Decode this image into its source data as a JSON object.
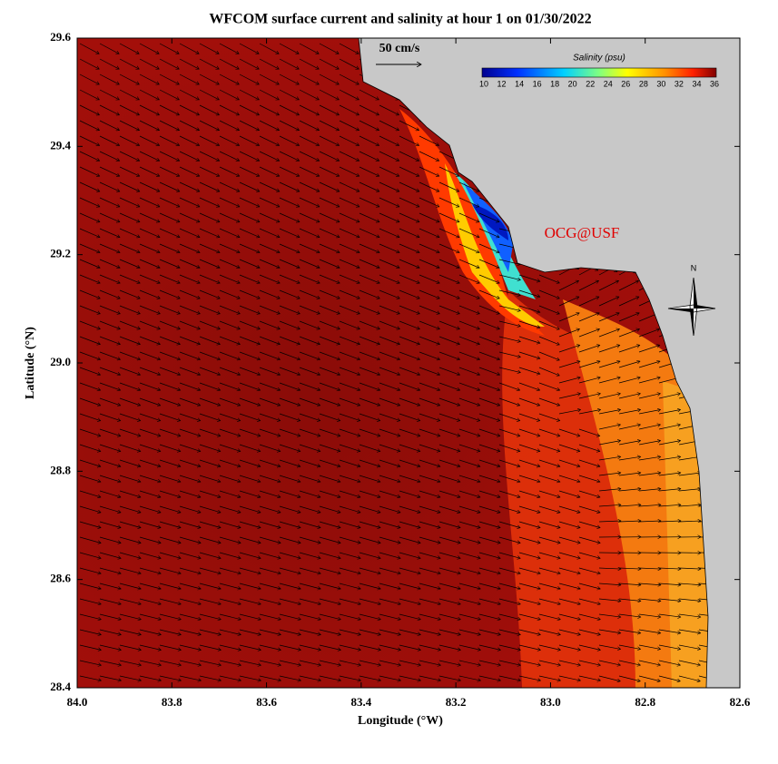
{
  "title": "WFCOM surface current and salinity at hour 1 on 01/30/2022",
  "x_axis": {
    "label": "Longitude (°W)",
    "ticks": [
      "84.0",
      "83.8",
      "83.6",
      "83.4",
      "83.2",
      "83.0",
      "82.8",
      "82.6"
    ]
  },
  "y_axis": {
    "label": "Latitude (°N)",
    "ticks": [
      "29.6",
      "29.4",
      "29.2",
      "29.0",
      "28.8",
      "28.6",
      "28.4"
    ]
  },
  "colorbar": {
    "title": "Salinity (psu)",
    "ticks": [
      "10",
      "12",
      "14",
      "16",
      "18",
      "20",
      "22",
      "24",
      "26",
      "28",
      "30",
      "32",
      "34",
      "36"
    ]
  },
  "scale_label": "50 cm/s",
  "watermark": "OCG@USF",
  "compass": "N"
}
